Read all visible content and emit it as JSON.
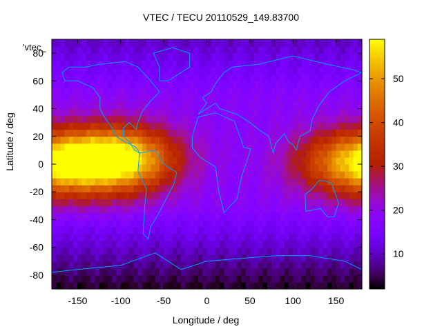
{
  "chart_data": {
    "type": "heatmap",
    "title": "VTEC / TECU 20110529_149.83700",
    "xlabel": "Longitude / deg",
    "ylabel": "Latitude / deg",
    "series_key": "'vtec_",
    "xlim": [
      -180,
      180
    ],
    "ylim": [
      -90,
      90
    ],
    "xticks": [
      -150,
      -100,
      -50,
      0,
      50,
      100,
      150
    ],
    "yticks": [
      -80,
      -60,
      -40,
      -20,
      0,
      20,
      40,
      60,
      80
    ],
    "colorbar": {
      "min": 2,
      "max": 59,
      "ticks": [
        10,
        20,
        30,
        40,
        50
      ]
    },
    "features": [
      {
        "name": "equatorial anomaly (Americas)",
        "lon": -100,
        "lat": 4,
        "value": 58
      },
      {
        "name": "equatorial band (Pacific west)",
        "lon": -160,
        "lat": 0,
        "value": 40
      },
      {
        "name": "equatorial band (West Pacific)",
        "lon": 160,
        "lat": 2,
        "value": 37
      },
      {
        "name": "background",
        "value": 18
      },
      {
        "name": "southern high latitude minimum",
        "lat": -85,
        "value": 3
      }
    ]
  },
  "colors": {
    "axis": "#000000",
    "coastline": "#00a0ff"
  }
}
